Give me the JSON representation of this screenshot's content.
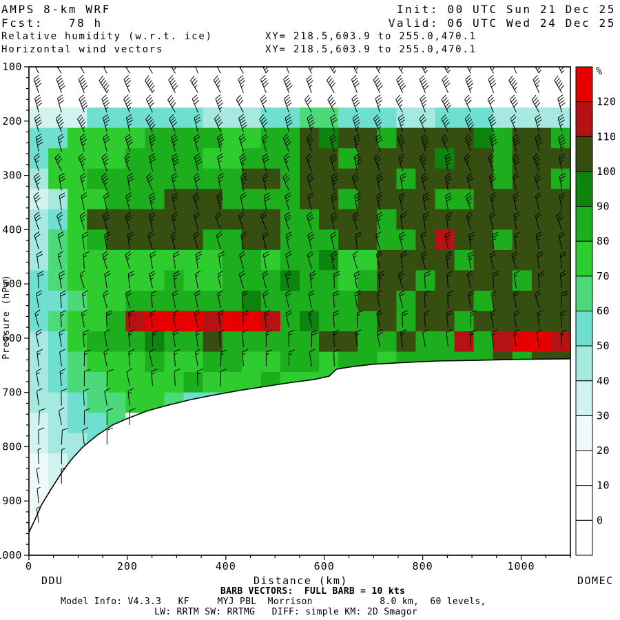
{
  "header": {
    "model": "AMPS 8-km WRF",
    "fcst": "Fcst:   78 h",
    "field1": "Relative humidity (w.r.t. ice)",
    "field2": "Horizontal wind vectors",
    "init": "Init: 00 UTC Sun 21 Dec 25",
    "valid": "Valid: 06 UTC Wed 24 Dec 25",
    "xy1": "XY= 218.5,603.9 to 255.0,470.1",
    "xy2": "XY= 218.5,603.9 to 255.0,470.1"
  },
  "axes": {
    "x_label": "Distance (km)",
    "y_label": "Pressure (hPa)",
    "left_station": "DDU",
    "right_station": "DOMEC",
    "x_range": [
      0,
      1100
    ],
    "y_range": [
      100,
      1000
    ],
    "x_ticks": [
      0,
      200,
      400,
      600,
      800,
      1000
    ],
    "y_ticks": [
      100,
      200,
      300,
      400,
      500,
      600,
      700,
      800,
      900,
      1000
    ]
  },
  "colorbar": {
    "unit": "%",
    "labels": [
      120,
      110,
      100,
      90,
      80,
      70,
      60,
      50,
      40,
      30,
      20,
      10,
      0
    ],
    "colors": [
      "#e60000",
      "#b51313",
      "#364f10",
      "#0d840d",
      "#1cae1c",
      "#2ecc2e",
      "#4cd97a",
      "#6fe0cf",
      "#a5e9e0",
      "#d2f3ef",
      "#eefafa",
      "#ffffff",
      "#ffffff",
      "#ffffff"
    ]
  },
  "footer": {
    "barb_note": "BARB VECTORS:  FULL BARB = 10 kts",
    "model_info": "Model Info: V4.3.3   KF     MYJ PBL  Morrison            8.0 km,  60 levels,",
    "physics": "LW: RRTM SW: RRTMG   DIFF: simple KM: 2D Smagor"
  },
  "chart_data": {
    "type": "heatmap",
    "title": "Relative humidity (w.r.t. ice) cross-section with horizontal wind vectors",
    "value_unit": "%",
    "rh_bins_pct": [
      0,
      10,
      20,
      30,
      40,
      50,
      60,
      70,
      80,
      90,
      100,
      110,
      120
    ],
    "x_km_range": [
      0,
      1100
    ],
    "pressure_hpa_range": [
      100,
      1000
    ],
    "grid_cols": 28,
    "grid_rows": 24,
    "palette": [
      "#ffffff",
      "#ffffff",
      "#eefafa",
      "#d2f3ef",
      "#a5e9e0",
      "#6fe0cf",
      "#4cd97a",
      "#2ecc2e",
      "#1cae1c",
      "#0d840d",
      "#364f10",
      "#b51313",
      "#e60000"
    ],
    "rh_grid_rows": [
      "0000000000000000000000000000",
      "0000000000000000000000000000",
      "3335555554445566555445554444",
      "55777788887788A9AA8AAAA98AA8",
      "57777888877888AA8AAAA9AA8AAA",
      "47788888888AA8AAAAA8AAAA8AA8",
      "3477888AAA8888AA8AAAA88AAAAA",
      "457AAAAAAAAAA88AAA8AAAAAAAAA",
      "4678AAAAA88AA888AA88ABAA8AAA",
      "467777777788788977AAAA8AAAAA",
      "567777787788898878AA8AAAA8AA",
      "55677888888988888AA8AAA8AAAA",
      "56778BCCCBCCB89888A8AA8AAAAA",
      "457888988A88888AA88A88B8BCCB",
      "456777877887788788788888A8AA",
      "4566777787778777000000000000",
      "4456677655000000000000000000",
      "3455600000000000000000000000",
      "3445000000000000000000000000",
      "2340000000000000000000000000",
      "2300000000000000000000000000",
      "2200000000000000000000000000",
      "1000000000000000000000000000",
      "0000000000000000000000000000"
    ],
    "terrain_profile": [
      [
        0,
        958
      ],
      [
        12,
        935
      ],
      [
        25,
        908
      ],
      [
        45,
        878
      ],
      [
        65,
        850
      ],
      [
        85,
        825
      ],
      [
        110,
        800
      ],
      [
        140,
        778
      ],
      [
        170,
        760
      ],
      [
        200,
        748
      ],
      [
        240,
        734
      ],
      [
        280,
        724
      ],
      [
        330,
        713
      ],
      [
        380,
        704
      ],
      [
        430,
        696
      ],
      [
        480,
        689
      ],
      [
        530,
        682
      ],
      [
        580,
        676
      ],
      [
        610,
        670
      ],
      [
        625,
        657
      ],
      [
        660,
        652
      ],
      [
        700,
        648
      ],
      [
        760,
        645
      ],
      [
        830,
        642
      ],
      [
        900,
        641
      ],
      [
        1000,
        639
      ],
      [
        1100,
        638
      ]
    ],
    "wind": {
      "full_barb_kts": 10,
      "column_start_km": 20,
      "column_spacing_km": 46.2,
      "column_count": 24,
      "level_start_hpa": 112,
      "level_step_hpa": 36,
      "speed_profile_kts": [
        [
          100,
          45
        ],
        [
          150,
          42
        ],
        [
          200,
          40
        ],
        [
          250,
          35
        ],
        [
          300,
          30
        ],
        [
          400,
          25
        ],
        [
          500,
          20
        ],
        [
          600,
          16
        ],
        [
          700,
          12
        ],
        [
          800,
          9
        ],
        [
          900,
          6
        ],
        [
          1000,
          5
        ]
      ],
      "shaft_angle_profile_deg": [
        [
          100,
          118
        ],
        [
          200,
          112
        ],
        [
          300,
          108
        ],
        [
          400,
          104
        ],
        [
          500,
          100
        ],
        [
          600,
          97
        ],
        [
          700,
          95
        ],
        [
          850,
          92
        ],
        [
          1000,
          90
        ]
      ]
    }
  }
}
